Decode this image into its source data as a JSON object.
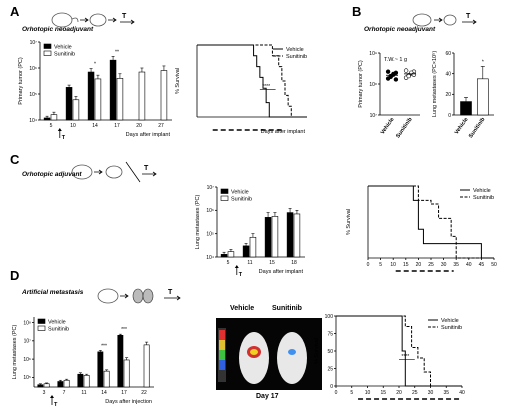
{
  "panels": {
    "A": {
      "letter": "A",
      "title": "Orhotopic neoadjuvant"
    },
    "B": {
      "letter": "B",
      "title": "Orhotopic neoadjuvant"
    },
    "C": {
      "letter": "C",
      "title": "Orhotopic adjuvant"
    },
    "D": {
      "letter": "D",
      "title": "Artificial metastasis"
    }
  },
  "treatment_marker": "T",
  "photo": {
    "labels": [
      "Vehicle",
      "Sunitinib"
    ],
    "caption": "Day 17"
  },
  "colors": {
    "vehicle": "#000000",
    "sunitinib": "#ffffff",
    "dashed": "#000000"
  },
  "chart_data": [
    {
      "id": "A-bar",
      "type": "bar",
      "title": "",
      "xlabel": "Days after implant",
      "ylabel": "Primary tumor (PC)",
      "categories": [
        "5",
        "10",
        "14",
        "17",
        "20",
        "27"
      ],
      "yscale": "log",
      "ylim": [
        10000,
        10000000
      ],
      "yticks": [
        10000,
        100000,
        1000000,
        10000000
      ],
      "ytick_labels": [
        "10⁴",
        "10⁵",
        "10⁶",
        "10⁷"
      ],
      "series": [
        {
          "name": "Vehicle",
          "values": [
            12000,
            180000,
            700000,
            2000000,
            null,
            null
          ],
          "err": [
            2000,
            40000,
            250000,
            800000,
            null,
            null
          ]
        },
        {
          "name": "Sunitinib",
          "values": [
            16000,
            60000,
            380000,
            400000,
            700000,
            800000
          ],
          "err": [
            4000,
            20000,
            150000,
            200000,
            300000,
            400000
          ]
        }
      ],
      "significance": {
        "14": "*",
        "17": "**"
      },
      "treatment_start": "T"
    },
    {
      "id": "A-surv",
      "type": "line",
      "title": "",
      "xlabel": "Days after implant",
      "ylabel": "% Survival",
      "xlim": [
        0,
        35
      ],
      "ylim": [
        0,
        100
      ],
      "series": [
        {
          "name": "Vehicle",
          "style": "solid",
          "x": [
            0,
            17,
            18,
            19,
            20,
            21,
            22,
            23,
            35
          ],
          "y": [
            100,
            100,
            85,
            70,
            55,
            40,
            20,
            0,
            0
          ]
        },
        {
          "name": "Sunitinib",
          "style": "dashed",
          "x": [
            0,
            22,
            24,
            26,
            27,
            28,
            29,
            30,
            35
          ],
          "y": [
            100,
            100,
            85,
            70,
            50,
            30,
            15,
            0,
            0
          ]
        }
      ],
      "significance": "****",
      "treatment_window": [
        5,
        27
      ]
    },
    {
      "id": "B-scatter",
      "type": "scatter",
      "title": "",
      "annotation": "T.W.~ 1 g",
      "xlabel": "",
      "ylabel": "Primary tumor (PC)",
      "categories": [
        "Vehicle",
        "Sunitinib"
      ],
      "yscale": "log",
      "ylim": [
        10000000,
        1000000000
      ],
      "yticks": [
        10000000,
        100000000,
        1000000000
      ],
      "ytick_labels": [
        "10⁷",
        "10⁸",
        "10⁹"
      ],
      "series": [
        {
          "name": "Vehicle",
          "values": [
            150000000,
            170000000,
            200000000,
            230000000,
            250000000,
            180000000,
            210000000,
            140000000
          ]
        },
        {
          "name": "Sunitinib",
          "values": [
            160000000,
            190000000,
            220000000,
            250000000,
            270000000,
            180000000,
            230000000,
            200000000
          ]
        }
      ]
    },
    {
      "id": "B-bar",
      "type": "bar",
      "title": "",
      "xlabel": "",
      "ylabel": "Lung metastases (PC×10⁵)",
      "categories": [
        "Vehicle",
        "Sunitinib"
      ],
      "ylim": [
        0,
        60
      ],
      "yticks": [
        0,
        20,
        40,
        60
      ],
      "series": [
        {
          "name": "Vehicle",
          "values": [
            13,
            null
          ],
          "err": [
            4,
            null
          ]
        },
        {
          "name": "Sunitinib",
          "values": [
            null,
            35
          ],
          "err": [
            null,
            12
          ]
        }
      ],
      "significance": "*"
    },
    {
      "id": "C-bar",
      "type": "bar",
      "title": "",
      "xlabel": "Days after implant",
      "ylabel": "Lung metastases (PC)",
      "categories": [
        "5",
        "11",
        "15",
        "18"
      ],
      "yscale": "log",
      "ylim": [
        10000,
        10000000
      ],
      "yticks": [
        10000,
        100000,
        1000000,
        10000000
      ],
      "ytick_labels": [
        "10⁴",
        "10⁵",
        "10⁶",
        "10⁷"
      ],
      "series": [
        {
          "name": "Vehicle",
          "values": [
            13000,
            30000,
            500000,
            800000
          ],
          "err": [
            3000,
            8000,
            300000,
            400000
          ]
        },
        {
          "name": "Sunitinib",
          "values": [
            17000,
            70000,
            550000,
            700000
          ],
          "err": [
            4000,
            30000,
            250000,
            300000
          ]
        }
      ],
      "treatment_start": "T"
    },
    {
      "id": "C-surv",
      "type": "line",
      "title": "",
      "xlabel": "",
      "ylabel": "% Survival",
      "xlim": [
        0,
        50
      ],
      "ylim": [
        0,
        100
      ],
      "xticks": [
        0,
        5,
        10,
        15,
        20,
        25,
        30,
        35,
        40,
        45,
        50
      ],
      "series": [
        {
          "name": "Vehicle",
          "style": "solid",
          "x": [
            0,
            16,
            18,
            20,
            22,
            34,
            45,
            50
          ],
          "y": [
            100,
            100,
            80,
            40,
            20,
            20,
            0,
            0
          ]
        },
        {
          "name": "Sunitinib",
          "style": "dashed",
          "x": [
            0,
            18,
            20,
            25,
            28,
            33,
            35,
            50
          ],
          "y": [
            100,
            100,
            80,
            75,
            55,
            30,
            0,
            0
          ]
        }
      ],
      "treatment_window": [
        11,
        34
      ]
    },
    {
      "id": "D-bar",
      "type": "bar",
      "title": "",
      "xlabel": "Days after injection",
      "ylabel": "Lung metastases (PC)",
      "categories": [
        "3",
        "7",
        "11",
        "14",
        "17",
        "22"
      ],
      "yscale": "log",
      "ylim": [
        30000,
        200000000
      ],
      "yticks": [
        100000,
        1000000,
        10000000,
        100000000
      ],
      "ytick_labels": [
        "10⁵",
        "10⁶",
        "10⁷",
        "10⁸"
      ],
      "series": [
        {
          "name": "Vehicle",
          "values": [
            40000,
            60000,
            150000,
            2500000,
            20000000,
            null
          ],
          "err": [
            5000,
            10000,
            30000,
            500000,
            3000000,
            null
          ]
        },
        {
          "name": "Sunitinib",
          "values": [
            45000,
            70000,
            130000,
            220000,
            900000,
            6000000
          ],
          "err": [
            5000,
            10000,
            20000,
            40000,
            300000,
            2500000
          ]
        }
      ],
      "significance": {
        "14": "***",
        "17": "***"
      },
      "treatment_start": "T"
    },
    {
      "id": "D-surv",
      "type": "line",
      "title": "",
      "xlabel": "",
      "ylabel": "% Survival",
      "xlim": [
        0,
        40
      ],
      "ylim": [
        0,
        100
      ],
      "yticks": [
        0,
        25,
        50,
        75,
        100
      ],
      "xticks": [
        0,
        5,
        10,
        15,
        20,
        25,
        30,
        35,
        40
      ],
      "series": [
        {
          "name": "Vehicle",
          "style": "solid",
          "x": [
            0,
            20,
            21,
            22,
            40
          ],
          "y": [
            100,
            100,
            50,
            0,
            0
          ]
        },
        {
          "name": "Sunitinib",
          "style": "dashed",
          "x": [
            0,
            21,
            22,
            24,
            26,
            28,
            30,
            40
          ],
          "y": [
            100,
            100,
            85,
            55,
            40,
            20,
            0,
            0
          ]
        }
      ],
      "significance": "****",
      "treatment_window": [
        7,
        40
      ]
    }
  ]
}
